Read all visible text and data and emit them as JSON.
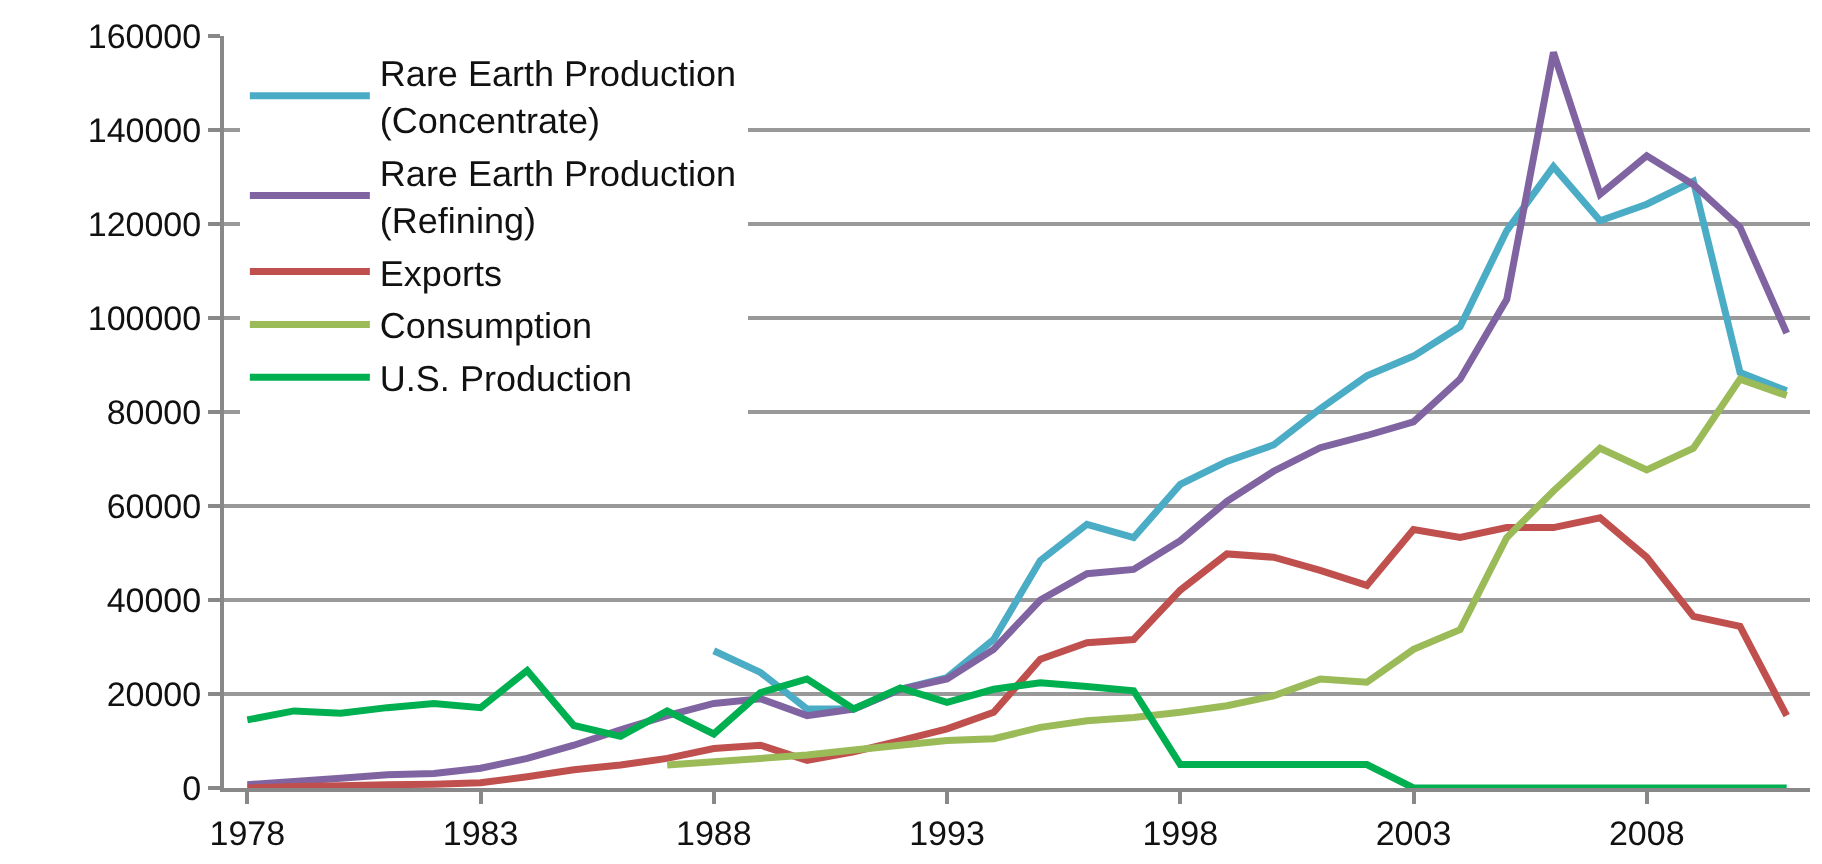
{
  "chart_data": {
    "type": "line",
    "x": [
      1978,
      1979,
      1980,
      1981,
      1982,
      1983,
      1984,
      1985,
      1986,
      1987,
      1988,
      1989,
      1990,
      1991,
      1992,
      1993,
      1994,
      1995,
      1996,
      1997,
      1998,
      1999,
      2000,
      2001,
      2002,
      2003,
      2004,
      2005,
      2006,
      2007,
      2008,
      2009,
      2010,
      2011
    ],
    "xlim": [
      1977.5,
      2011.5
    ],
    "xticks": [
      1978,
      1983,
      1988,
      1993,
      1998,
      2003,
      2008
    ],
    "ylim": [
      0,
      160000
    ],
    "yticks": [
      0,
      20000,
      40000,
      60000,
      80000,
      100000,
      120000,
      140000,
      160000
    ],
    "grid": "y",
    "legend": "top left",
    "marker": "none",
    "line_style": "solid",
    "series": [
      {
        "name": "Rare Earth Production (Concentrate)",
        "color": "#4bacc6",
        "values": [
          null,
          null,
          null,
          null,
          null,
          null,
          null,
          null,
          null,
          null,
          29200,
          24600,
          16800,
          16800,
          21000,
          23500,
          31600,
          48400,
          56100,
          53300,
          64600,
          69500,
          73000,
          80700,
          87700,
          91900,
          98200,
          118600,
          132200,
          120700,
          124200,
          129100,
          88400,
          84500
        ]
      },
      {
        "name": "Rare Earth Production (Refining)",
        "color": "#8064a2",
        "values": [
          700,
          1400,
          2100,
          2800,
          3100,
          4200,
          6300,
          9100,
          12400,
          15400,
          18000,
          19000,
          15400,
          16800,
          21000,
          23200,
          29500,
          40000,
          45600,
          46500,
          52600,
          61000,
          67400,
          72400,
          75000,
          77900,
          87000,
          104000,
          156500,
          126300,
          134500,
          128400,
          119300,
          96800
        ]
      },
      {
        "name": "Exports",
        "color": "#c0504d",
        "values": [
          0,
          300,
          500,
          700,
          800,
          1100,
          2400,
          3900,
          4900,
          6300,
          8400,
          9100,
          5900,
          7700,
          10100,
          12600,
          16100,
          27400,
          30900,
          31600,
          42100,
          49800,
          49100,
          46300,
          43100,
          55000,
          53300,
          55400,
          55400,
          57500,
          49100,
          36500,
          34400,
          15400
        ]
      },
      {
        "name": "Consumption",
        "color": "#9bbb59",
        "values": [
          null,
          null,
          null,
          null,
          null,
          null,
          null,
          null,
          null,
          4900,
          5600,
          6300,
          7000,
          8100,
          9100,
          10100,
          10500,
          12900,
          14300,
          15000,
          16100,
          17500,
          19600,
          23200,
          22500,
          29500,
          33700,
          53300,
          63200,
          72300,
          67700,
          72300,
          87000,
          83500
        ]
      },
      {
        "name": "U.S. Production",
        "color": "#00b050",
        "values": [
          14500,
          16400,
          15900,
          17100,
          18000,
          17100,
          25000,
          13300,
          11000,
          16400,
          11500,
          20300,
          23200,
          16800,
          21300,
          18200,
          21000,
          22400,
          21600,
          20700,
          5000,
          5000,
          5000,
          5000,
          5000,
          0,
          0,
          0,
          0,
          0,
          0,
          0,
          0,
          0
        ]
      }
    ]
  }
}
